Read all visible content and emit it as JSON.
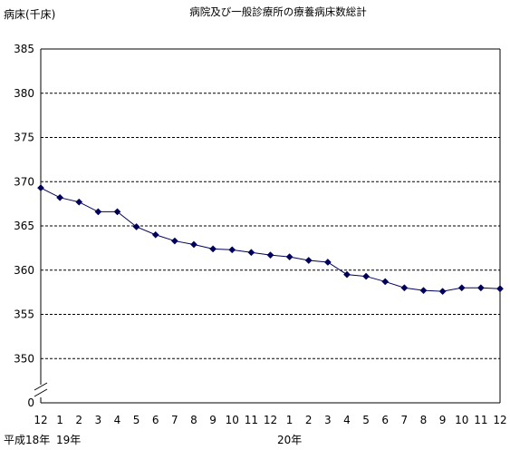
{
  "chart_data": {
    "type": "line",
    "title": "病院及び一般診療所の療養病床数総計",
    "ylabel": "病床(千床)",
    "xlabel": "",
    "ylim": [
      345,
      385
    ],
    "y_ticks": [
      "0",
      "350",
      "355",
      "360",
      "365",
      "370",
      "375",
      "380",
      "385"
    ],
    "axis_break": true,
    "grid": "horizontal-dashed",
    "x_tick_labels": [
      "12",
      "1",
      "2",
      "3",
      "4",
      "5",
      "6",
      "7",
      "8",
      "9",
      "10",
      "11",
      "12",
      "1",
      "2",
      "3",
      "4",
      "5",
      "6",
      "7",
      "8",
      "9",
      "10",
      "11",
      "12"
    ],
    "x_group_labels": [
      {
        "text": "平成18年",
        "at_index": 0
      },
      {
        "text": "19年",
        "at_index": 1
      },
      {
        "text": "20年",
        "at_index": 13
      }
    ],
    "marker_color": "#00005a",
    "line_color": "#00005a",
    "series": [
      {
        "values": [
          369.3,
          368.2,
          367.7,
          366.6,
          366.6,
          364.9,
          364.0,
          363.3,
          362.9,
          362.4,
          362.3,
          362.0,
          361.7,
          361.5,
          361.1,
          360.9,
          359.5,
          359.3,
          358.7,
          358.0,
          357.7,
          357.6,
          358.0,
          358.0,
          357.9
        ]
      }
    ]
  }
}
